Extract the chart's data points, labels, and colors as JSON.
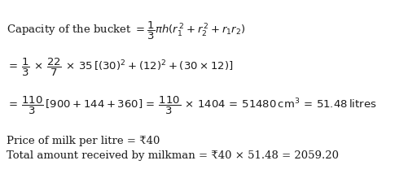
{
  "bg_color": "#ffffff",
  "line1_prefix": "Capacity of the bucket = ",
  "line1_formula": "$\\dfrac{1}{3}\\pi h(r_1^{\\,2}+r_2^{\\,2}+r_1r_2)$",
  "line2": "$=\\,\\dfrac{1}{3}\\,\\times\\,\\dfrac{22}{7}\\,\\times\\,35\\,[(30)^2+(12)^2+(30\\times 12)]$",
  "line3": "$=\\,\\dfrac{110}{3}\\,[900+144+360]\\,=\\,\\dfrac{110}{3}\\,\\times\\,1404\\,=\\,51480\\,\\mathrm{cm}^3\\,=\\,51.48\\,\\mathrm{litres}$",
  "line4": "Price of milk per litre = ₹40",
  "line5": "Total amount received by milkman = ₹40 × 51.48 = 2059.20",
  "font_size": 9.5,
  "text_color": "#1a1a1a",
  "fig_width": 5.01,
  "fig_height": 2.35,
  "dpi": 100
}
